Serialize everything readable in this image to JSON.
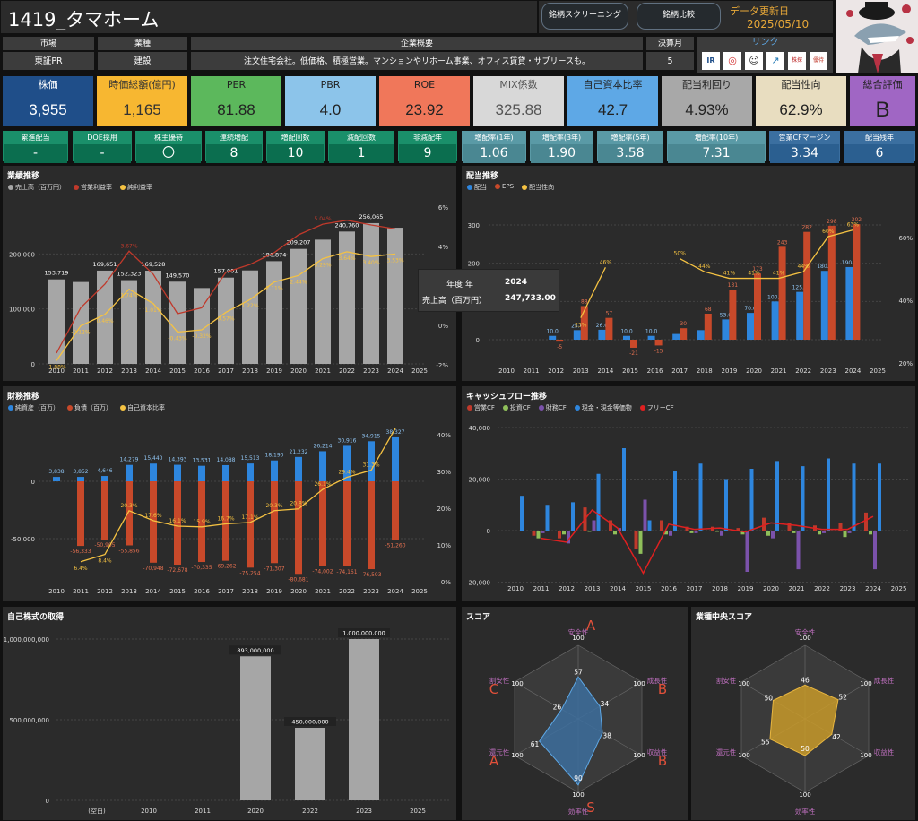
{
  "header": {
    "title": "1419_タマホーム",
    "btn_screen": "銘柄スクリーニング",
    "btn_compare": "銘柄比較",
    "update_label": "データ更新日",
    "update_date": "2025/05/10"
  },
  "info": {
    "market_h": "市場",
    "market_v": "東証PR",
    "industry_h": "業種",
    "industry_v": "建設",
    "summary_h": "企業概要",
    "summary_v": "注文住宅会社。低価格、積極営業。マンションやリホーム事業、オフィス賃貸・サブリースも。",
    "fiscal_h": "決算月",
    "fiscal_v": "5",
    "link_h": "リンク"
  },
  "cards": [
    {
      "label": "株価",
      "value": "3,955",
      "bg": "#1f4e89",
      "fg": "#ffffff"
    },
    {
      "label": "時価総額(億円)",
      "value": "1,165",
      "bg": "#f7b731",
      "fg": "#333333"
    },
    {
      "label": "PER",
      "value": "81.88",
      "bg": "#5cb85c",
      "fg": "#222222"
    },
    {
      "label": "PBR",
      "value": "4.0",
      "bg": "#8cc4ea",
      "fg": "#222222"
    },
    {
      "label": "ROE",
      "value": "23.92",
      "bg": "#f0775a",
      "fg": "#222222"
    },
    {
      "label": "MIX係数",
      "value": "325.88",
      "bg": "#d8d8d8",
      "fg": "#555555"
    },
    {
      "label": "自己資本比率",
      "value": "42.7",
      "bg": "#5ea8e6",
      "fg": "#222222"
    },
    {
      "label": "配当利回り",
      "value": "4.93%",
      "bg": "#a8a8a8",
      "fg": "#222222"
    },
    {
      "label": "配当性向",
      "value": "62.9%",
      "bg": "#e8ddc0",
      "fg": "#222222"
    },
    {
      "label": "総合評価",
      "value": "B",
      "bg": "#a066c4",
      "fg": "#222222"
    }
  ],
  "small": [
    {
      "label": "累進配当",
      "value": "-"
    },
    {
      "label": "DOE採用",
      "value": "-"
    },
    {
      "label": "株主優待",
      "value": "〇"
    },
    {
      "label": "連続増配",
      "value": "8"
    },
    {
      "label": "増配回数",
      "value": "10"
    },
    {
      "label": "減配回数",
      "value": "1"
    },
    {
      "label": "非減配年",
      "value": "9"
    },
    {
      "label": "増配率(1年)",
      "value": "1.06"
    },
    {
      "label": "増配率(3年)",
      "value": "1.90"
    },
    {
      "label": "増配率(5年)",
      "value": "3.58"
    },
    {
      "label": "増配率(10年)",
      "value": "7.31"
    },
    {
      "label": "営業CFマージン",
      "value": "3.34"
    },
    {
      "label": "配当残年",
      "value": "6"
    }
  ],
  "chart_data": [
    {
      "id": "gyoseki",
      "type": "bar",
      "title": "業績推移",
      "legend": [
        "売上高（百万円）",
        "営業利益率",
        "純利益率"
      ],
      "categories": [
        "2010",
        "2011",
        "2012",
        "2013",
        "2014",
        "2015",
        "2016",
        "2017",
        "2018",
        "2019",
        "2020",
        "2021",
        "2022",
        "2023",
        "2024",
        "2025"
      ],
      "sales": [
        153719,
        149000,
        169651,
        152323,
        169528,
        149570,
        138000,
        157001,
        170000,
        186874,
        209207,
        226000,
        240760,
        256065,
        247733,
        null
      ],
      "sales_labels": [
        "153,719",
        "",
        "169,651",
        "152,323",
        "169,528",
        "149,570",
        "",
        "157,001",
        "",
        "186,874",
        "209,207",
        "",
        "240,760",
        "256,065",
        "",
        ""
      ],
      "op_margin": [
        -1.5,
        0.8,
        2.0,
        3.67,
        2.5,
        0.5,
        0.8,
        2.6,
        3.0,
        3.6,
        4.5,
        5.04,
        5.24,
        5.0,
        4.8,
        null
      ],
      "net_margin": [
        -1.88,
        -0.12,
        0.46,
        1.74,
        1.01,
        -0.43,
        -0.32,
        0.57,
        1.22,
        2.11,
        2.44,
        3.29,
        3.64,
        3.4,
        3.53,
        null
      ],
      "net_labels": [
        "-1.88%",
        "-0.12%",
        "0.46%",
        "1.74%",
        "1.01%",
        "-0.43%",
        "-0.32%",
        "0.57%",
        "1.22%",
        "2.11%",
        "2.44%",
        "3.29%",
        "3.64%",
        "3.40%",
        "3.53%",
        ""
      ],
      "op_labels": [
        "",
        "",
        "",
        "3.67%",
        "",
        "",
        "",
        "",
        "",
        "",
        "",
        "5.04%",
        "",
        "",
        "",
        ""
      ],
      "y_ticks": [
        "0",
        "100,000",
        "200,000"
      ],
      "y2_ticks": [
        "6%",
        "4%",
        "2%",
        "0%",
        "-2%"
      ],
      "tooltip": {
        "k1": "年度 年",
        "v1": "2024",
        "k2": "売上高（百万円）",
        "v2": "247,733.00"
      }
    },
    {
      "id": "haito",
      "type": "bar",
      "title": "配当推移",
      "legend": [
        "配当",
        "EPS",
        "配当性向"
      ],
      "categories": [
        "2010",
        "2011",
        "2012",
        "2013",
        "2014",
        "2015",
        "2016",
        "2017",
        "2018",
        "2019",
        "2020",
        "2021",
        "2022",
        "2023",
        "2024",
        "2025"
      ],
      "div": [
        null,
        null,
        10,
        25,
        26,
        10,
        10,
        15,
        25,
        53,
        70,
        100,
        125,
        180,
        190,
        null
      ],
      "eps": [
        null,
        null,
        -5,
        88,
        57,
        -21,
        -15,
        30,
        68,
        131,
        173,
        243,
        282,
        298,
        302,
        null
      ],
      "div_labels": [
        "",
        "",
        "10.0",
        "25.0",
        "26.0",
        "10.0",
        "10.0",
        "",
        "",
        "53.0",
        "70.0",
        "100.0",
        "125.0",
        "180.0",
        "190.0",
        ""
      ],
      "eps_labels": [
        "",
        "",
        "-5",
        "88",
        "57",
        "-21",
        "-15",
        "30",
        "68",
        "131",
        "173",
        "243",
        "282",
        "298",
        "302",
        ""
      ],
      "payout": [
        null,
        null,
        null,
        23,
        46,
        null,
        null,
        50,
        44,
        41,
        41,
        41,
        44,
        60,
        63,
        null
      ],
      "payout_labels": [
        "",
        "",
        "",
        "23%",
        "46%",
        "",
        "",
        "50%",
        "44%",
        "41%",
        "41%",
        "41%",
        "44%",
        "60%",
        "63%",
        ""
      ],
      "y_ticks": [
        "0",
        "100",
        "200",
        "300"
      ],
      "y2_ticks": [
        "60%",
        "40%",
        "20%"
      ]
    },
    {
      "id": "zaimu",
      "type": "bar",
      "title": "財務推移",
      "legend": [
        "純資産（百万）",
        "負債（百万）",
        "自己資本比率"
      ],
      "categories": [
        "2010",
        "2011",
        "2012",
        "2013",
        "2014",
        "2015",
        "2016",
        "2017",
        "2018",
        "2019",
        "2020",
        "2021",
        "2022",
        "2023",
        "2024",
        "2025"
      ],
      "equity": [
        3838,
        3852,
        4646,
        14279,
        15440,
        14393,
        13531,
        14088,
        15513,
        18190,
        21232,
        26214,
        30916,
        34915,
        38327,
        null
      ],
      "debt": [
        null,
        -56333,
        -50905,
        -55856,
        -70948,
        -72678,
        -70335,
        -69262,
        -75254,
        -71307,
        -80681,
        -74002,
        -74161,
        -76593,
        -51260,
        null
      ],
      "equity_labels": [
        "3,838",
        "3,852",
        "4,646",
        "14,279",
        "15,440",
        "14,393",
        "13,531",
        "14,088",
        "15,513",
        "18,190",
        "21,232",
        "26,214",
        "30,916",
        "34,915",
        "38,327",
        ""
      ],
      "debt_labels": [
        "",
        "-56,333",
        "-50,905",
        "-55,856",
        "-70,948",
        "-72,678",
        "-70,335",
        "-69,262",
        "-75,254",
        "-71,307",
        "-80,681",
        "-74,002",
        "-74,161",
        "-76,593",
        "-51,260",
        ""
      ],
      "ratio": [
        null,
        6.4,
        8.4,
        20.3,
        17.6,
        16.1,
        15.9,
        16.7,
        17.1,
        20.3,
        20.8,
        26.1,
        29.4,
        31.3,
        42.7,
        null
      ],
      "ratio_labels": [
        "",
        "6.4%",
        "8.4%",
        "20.3%",
        "17.6%",
        "16.1%",
        "15.9%",
        "16.7%",
        "17.1%",
        "20.3%",
        "20.8%",
        "26.1%",
        "29.4%",
        "31.3%",
        "",
        ""
      ],
      "y_ticks": [
        "0",
        "-50,000"
      ],
      "y2_ticks": [
        "40%",
        "30%",
        "20%",
        "10%",
        "0%"
      ]
    },
    {
      "id": "cf",
      "type": "bar",
      "title": "キャッシュフロー推移",
      "legend": [
        "営業CF",
        "投資CF",
        "財務CF",
        "現金・現金等価物",
        "フリーCF"
      ],
      "categories": [
        "2010",
        "2011",
        "2012",
        "2013",
        "2014",
        "2015",
        "2016",
        "2017",
        "2018",
        "2019",
        "2020",
        "2021",
        "2022",
        "2023",
        "2024",
        "2025"
      ],
      "op": [
        null,
        -2000,
        -3000,
        9000,
        4000,
        -7000,
        4000,
        1500,
        1500,
        1000,
        5000,
        3000,
        2000,
        3000,
        7000,
        null
      ],
      "inv": [
        null,
        -3000,
        -1500,
        -500,
        -1500,
        -9000,
        -1500,
        -1000,
        -500,
        -1500,
        -2000,
        -1000,
        -1500,
        -2500,
        -1500,
        null
      ],
      "fin": [
        null,
        -1000,
        -5000,
        4000,
        1000,
        12000,
        -2000,
        -1000,
        -2000,
        -16000,
        -3000,
        -15000,
        -1000,
        -1000,
        -15000,
        null
      ],
      "cash": [
        13500,
        10000,
        11000,
        22000,
        32000,
        4000,
        23000,
        26000,
        20000,
        24000,
        27000,
        25000,
        28000,
        26000,
        26000,
        null
      ],
      "free": [
        null,
        -3000,
        -4500,
        8000,
        1000,
        -16500,
        2500,
        500,
        1000,
        -500,
        3000,
        2000,
        500,
        500,
        5500,
        null
      ],
      "y_ticks": [
        "40,000",
        "20,000",
        "0",
        "-20,000"
      ]
    },
    {
      "id": "jisha",
      "type": "bar",
      "title": "自己株式の取得",
      "categories": [
        "(空白)",
        "2010",
        "2011",
        "2020",
        "2022",
        "2023",
        "2025"
      ],
      "values": [
        0,
        0,
        0,
        893000000,
        450000000,
        1000000000,
        0
      ],
      "labels": [
        "",
        "",
        "",
        "893,000,000",
        "450,000,000",
        "1,000,000,000",
        ""
      ],
      "y_ticks": [
        "1,000,000,000",
        "500,000,000",
        "0"
      ]
    },
    {
      "id": "score",
      "type": "radar",
      "title": "スコア",
      "axes": [
        "安全性",
        "成長性",
        "収益性",
        "効率性",
        "還元性",
        "割安性"
      ],
      "grades": [
        "A",
        "B",
        "B",
        "S",
        "A",
        "C"
      ],
      "values": [
        57,
        34,
        38,
        90,
        61,
        26
      ],
      "max": "100"
    },
    {
      "id": "industry_score",
      "type": "radar",
      "title": "業種中央スコア",
      "axes": [
        "安全性",
        "成長性",
        "収益性",
        "効率性",
        "還元性",
        "割安性"
      ],
      "values": [
        46,
        52,
        42,
        50,
        55,
        50
      ],
      "max": "100"
    }
  ],
  "colors": {
    "gray": "#a6a6a6",
    "red": "#c0392b",
    "orange": "#c8492a",
    "yellow": "#f5c242",
    "blue": "#2e86de",
    "purple": "#7b52ab",
    "green": "#8fbf5a",
    "score_fill": "#3d6f9e",
    "ind_fill": "#c89a2a"
  }
}
